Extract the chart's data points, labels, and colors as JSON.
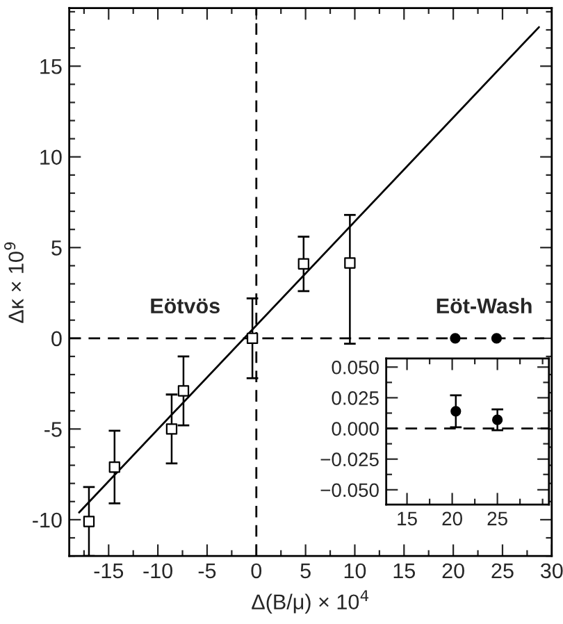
{
  "chart_data": [
    {
      "type": "scatter",
      "xlabel": "Δ(B/μ) × 10$^{4}$",
      "ylabel": "Δκ × 10$^{9}$",
      "xlim": [
        -19,
        30
      ],
      "ylim": [
        -12,
        18.2
      ],
      "xticks": [
        -15,
        -10,
        -5,
        0,
        5,
        10,
        15,
        20,
        25,
        30
      ],
      "yticks": [
        -10,
        -5,
        0,
        5,
        10,
        15
      ],
      "series": [
        {
          "marker": "square",
          "color": "#000000",
          "x": [
            -17.0,
            -14.4,
            -8.6,
            -7.4,
            -0.4,
            4.8,
            9.5
          ],
          "values": [
            -10.1,
            -7.1,
            -5.0,
            -2.9,
            0.0,
            4.1,
            4.15
          ],
          "errors": [
            1.9,
            2.0,
            1.9,
            1.9,
            2.2,
            1.5,
            [
              -0.3,
              6.8
            ]
          ]
        },
        {
          "marker": "circle",
          "color": "#000000",
          "x": [
            20.2,
            24.4
          ],
          "values": [
            0.0,
            0.0
          ]
        },
        {
          "type": "line",
          "color": "#000000",
          "line_style": "solid",
          "x": [
            -18.0,
            28.7
          ],
          "values": [
            -9.6,
            17.15
          ]
        }
      ],
      "ref_lines": [
        {
          "axis": "x",
          "value": 0,
          "line_style": "dashed",
          "color": "#000000"
        },
        {
          "axis": "y",
          "value": 0,
          "line_style": "dashed",
          "color": "#000000"
        }
      ],
      "annotations": [
        "Eötvös",
        "Eöt-Wash"
      ]
    },
    {
      "type": "scatter",
      "xlim": [
        12.7,
        30.7
      ],
      "ylim": [
        -0.062,
        0.057
      ],
      "xticks": [
        15,
        20,
        25
      ],
      "yticks": [
        {
          "value": 0.05,
          "label": "0.050"
        },
        {
          "value": 0.025,
          "label": "0.025"
        },
        {
          "value": 0,
          "label": "0.000"
        },
        {
          "value": -0.025,
          "label": "−0.025"
        },
        {
          "value": -0.05,
          "label": "−0.050"
        }
      ],
      "series": [
        {
          "marker": "circle",
          "color": "#000000",
          "x": [
            20.4,
            25.0
          ],
          "values": [
            0.014,
            0.007
          ],
          "errors": [
            0.013,
            0.0085
          ]
        }
      ],
      "ref_lines": [
        {
          "axis": "y",
          "value": 0,
          "line_style": "dashed",
          "color": "#000000"
        }
      ]
    }
  ]
}
